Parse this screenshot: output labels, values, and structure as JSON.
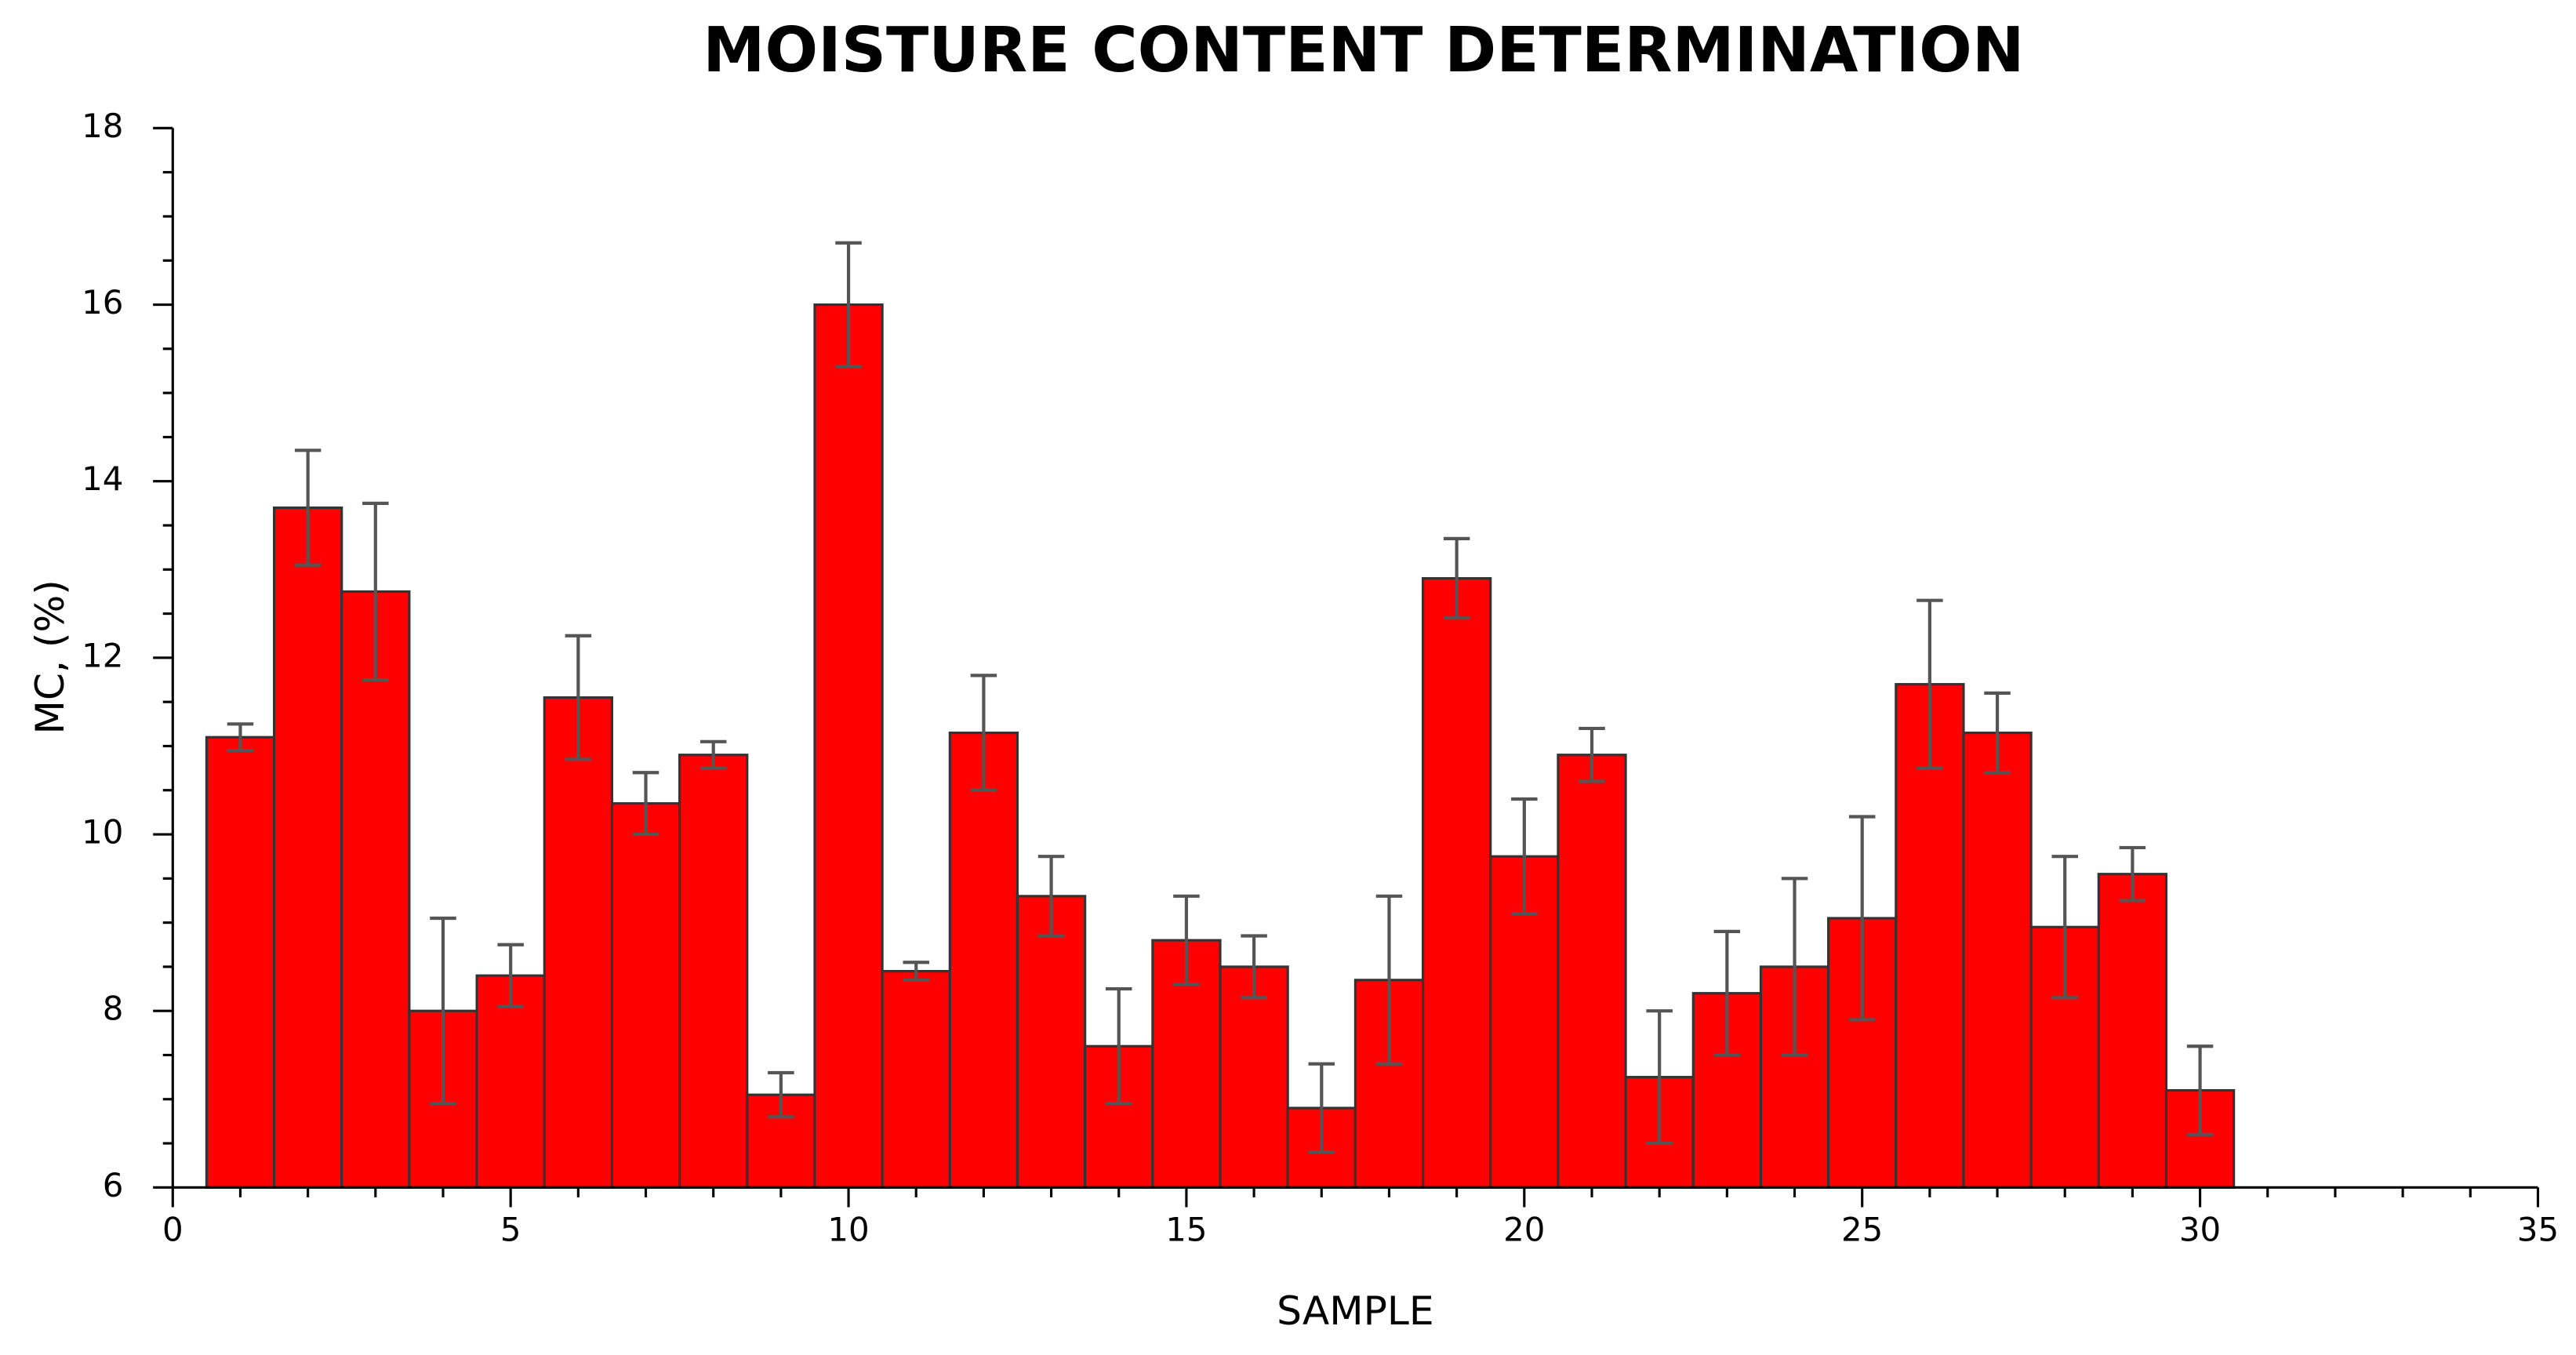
{
  "chart_data": {
    "type": "bar",
    "title": "MOISTURE CONTENT DETERMINATION",
    "x_label": "SAMPLE",
    "y_label": "MC, (%)",
    "x": [
      1,
      2,
      3,
      4,
      5,
      6,
      7,
      8,
      9,
      10,
      11,
      12,
      13,
      14,
      15,
      16,
      17,
      18,
      19,
      20,
      21,
      22,
      23,
      24,
      25,
      26,
      27,
      28,
      29,
      30
    ],
    "values": [
      11.1,
      13.7,
      12.75,
      8.0,
      8.4,
      11.55,
      10.35,
      10.9,
      7.05,
      16.0,
      8.45,
      11.15,
      9.3,
      7.6,
      8.8,
      8.5,
      6.9,
      8.35,
      12.9,
      9.75,
      10.9,
      7.25,
      8.2,
      8.5,
      9.05,
      11.7,
      11.15,
      8.95,
      9.55,
      7.1
    ],
    "errors": [
      0.15,
      0.65,
      1.0,
      1.05,
      0.35,
      0.7,
      0.35,
      0.15,
      0.25,
      0.7,
      0.1,
      0.65,
      0.45,
      0.65,
      0.5,
      0.35,
      0.5,
      0.95,
      0.45,
      0.65,
      0.3,
      0.75,
      0.7,
      1.0,
      1.15,
      0.95,
      0.45,
      0.8,
      0.3,
      0.5
    ],
    "color": "#ff0000",
    "error_color": "#555555",
    "xlim": [
      0,
      35
    ],
    "xticks": [
      0,
      5,
      10,
      15,
      20,
      25,
      30,
      35
    ],
    "xminorticks": [
      1,
      2,
      3,
      4,
      6,
      7,
      8,
      9,
      11,
      12,
      13,
      14,
      16,
      17,
      18,
      19,
      21,
      22,
      23,
      24,
      26,
      27,
      28,
      29,
      31,
      32,
      33,
      34
    ],
    "ylim": [
      6,
      18
    ],
    "yticks": [
      6,
      8,
      10,
      12,
      14,
      16,
      18
    ],
    "yminorticks": [
      6.5,
      7,
      7.5,
      8.5,
      9,
      9.5,
      10.5,
      11,
      11.5,
      12.5,
      13,
      13.5,
      14.5,
      15,
      15.5,
      16.5,
      17,
      17.5
    ],
    "grid": false
  }
}
